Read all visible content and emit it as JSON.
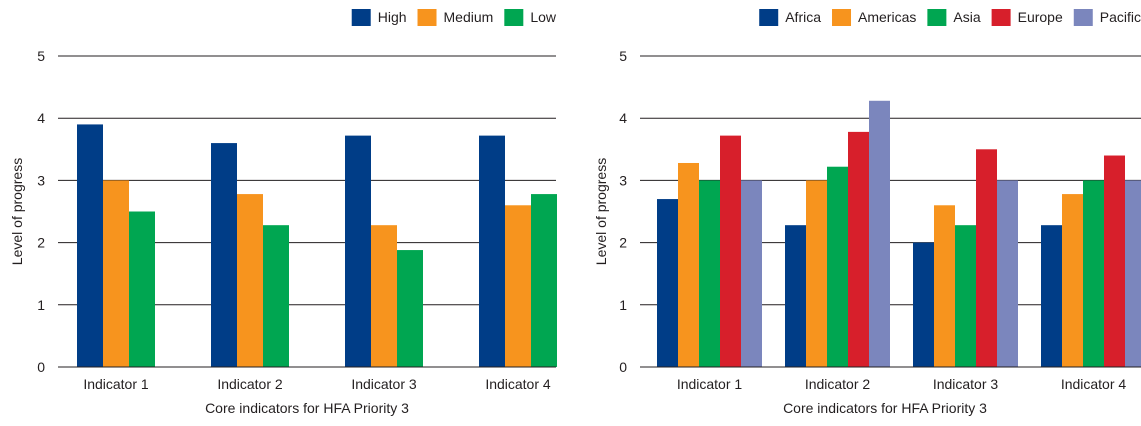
{
  "chart_data": [
    {
      "type": "bar",
      "categories": [
        "Indicator 1",
        "Indicator 2",
        "Indicator 3",
        "Indicator 4"
      ],
      "series": [
        {
          "name": "High",
          "color": "#003d87",
          "values": [
            3.9,
            3.6,
            3.72,
            3.72
          ]
        },
        {
          "name": "Medium",
          "color": "#f7941e",
          "values": [
            3.0,
            2.78,
            2.28,
            2.6
          ]
        },
        {
          "name": "Low",
          "color": "#00a651",
          "values": [
            2.5,
            2.28,
            1.88,
            2.78
          ]
        }
      ],
      "xlabel": "Core indicators for HFA Priority 3",
      "ylabel": "Level of progress",
      "ylim": [
        0,
        5
      ],
      "yticks": [
        "0",
        "1",
        "2",
        "3",
        "4",
        "5"
      ],
      "grid": true,
      "legend": "top-right"
    },
    {
      "type": "bar",
      "categories": [
        "Indicator 1",
        "Indicator 2",
        "Indicator 3",
        "Indicator 4"
      ],
      "series": [
        {
          "name": "Africa",
          "color": "#003d87",
          "values": [
            2.7,
            2.28,
            2.0,
            2.28
          ]
        },
        {
          "name": "Americas",
          "color": "#f7941e",
          "values": [
            3.28,
            3.0,
            2.6,
            2.78
          ]
        },
        {
          "name": "Asia",
          "color": "#00a651",
          "values": [
            3.0,
            3.22,
            2.28,
            3.0
          ]
        },
        {
          "name": "Europe",
          "color": "#d71f2b",
          "values": [
            3.72,
            3.78,
            3.5,
            3.4
          ]
        },
        {
          "name": "Pacific",
          "color": "#7b86bd",
          "values": [
            3.0,
            4.28,
            3.0,
            3.0
          ]
        }
      ],
      "xlabel": "Core indicators for HFA Priority 3",
      "ylabel": "Level of progress",
      "ylim": [
        0,
        5
      ],
      "yticks": [
        "0",
        "1",
        "2",
        "3",
        "4",
        "5"
      ],
      "grid": true,
      "legend": "top-right"
    }
  ]
}
